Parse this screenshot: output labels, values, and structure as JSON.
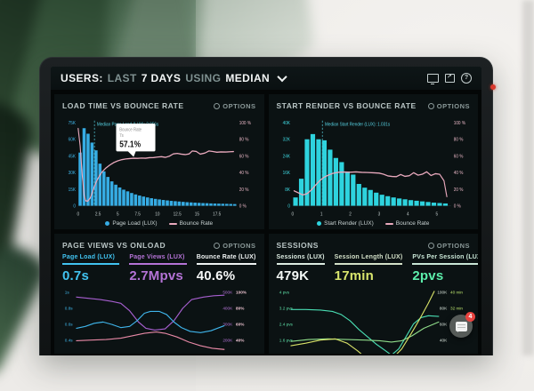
{
  "header": {
    "title_segments": [
      {
        "text": "USERS:",
        "style": "bold"
      },
      {
        "text": "LAST",
        "style": "dim"
      },
      {
        "text": "7 DAYS",
        "style": "bold"
      },
      {
        "text": "USING",
        "style": "dim"
      },
      {
        "text": "MEDIAN",
        "style": "bold"
      }
    ],
    "icons": [
      "display-icon",
      "export-icon",
      "help-icon"
    ]
  },
  "ui": {
    "options_label": "OPTIONS",
    "chat_badge": "4",
    "badge_color": "#e8433f"
  },
  "chart_data": [
    {
      "type": "bar",
      "title": "LOAD TIME VS BOUNCE RATE",
      "x_ticks": [
        0,
        2.5,
        5,
        7.5,
        10,
        12.5,
        15,
        17.5
      ],
      "x_max": 20,
      "y_left": {
        "max_k": 75,
        "ticks": [
          "75K",
          "60K",
          "45K",
          "30K",
          "15K",
          "0"
        ],
        "color": "#3fb6ea"
      },
      "y_right": {
        "max": 100,
        "ticks": [
          "100 %",
          "80 %",
          "60 %",
          "40 %",
          "20 %",
          "0 %"
        ],
        "color": "#e9b7c6"
      },
      "x_tick_color": "#c3cdcd",
      "bars": {
        "label": "Page Load (LUX)",
        "color": "#36ace4",
        "x0": 0,
        "step": 0.5,
        "values_k": [
          48,
          70,
          65,
          57,
          50,
          38,
          31,
          26,
          22,
          19,
          16.5,
          14.5,
          13,
          11.5,
          10.2,
          9.2,
          8.3,
          7.5,
          6.8,
          6.2,
          5.7,
          5.2,
          4.8,
          4.4,
          4.1,
          3.8,
          3.5,
          3.2,
          3,
          2.8,
          2.6,
          2.4,
          2.3,
          2.1,
          2,
          1.9,
          1.8,
          1.7,
          1.6,
          1.5
        ]
      },
      "line": {
        "label": "Bounce Rate",
        "color": "#e9a9bd",
        "points": [
          [
            0,
            93
          ],
          [
            0.25,
            72
          ],
          [
            0.5,
            38
          ],
          [
            0.75,
            13
          ],
          [
            0.95,
            6
          ],
          [
            1.2,
            5.5
          ],
          [
            1.5,
            9
          ],
          [
            1.75,
            15
          ],
          [
            2,
            22
          ],
          [
            2.25,
            28
          ],
          [
            2.5,
            33
          ],
          [
            2.75,
            37
          ],
          [
            3,
            40.5
          ],
          [
            3.5,
            45.5
          ],
          [
            4,
            49
          ],
          [
            4.5,
            52
          ],
          [
            5,
            54
          ],
          [
            5.5,
            55.5
          ],
          [
            6,
            56.3
          ],
          [
            6.5,
            56.8
          ],
          [
            7,
            57.1
          ],
          [
            7.5,
            57
          ],
          [
            8,
            57.4
          ],
          [
            8.5,
            57.1
          ],
          [
            9,
            57.8
          ],
          [
            9.5,
            58
          ],
          [
            10,
            58.6
          ],
          [
            10.5,
            59
          ],
          [
            11,
            58.2
          ],
          [
            11.5,
            59.6
          ],
          [
            12,
            62.4
          ],
          [
            12.5,
            63
          ],
          [
            13,
            62.2
          ],
          [
            13.5,
            61.6
          ],
          [
            14,
            62.4
          ],
          [
            14.4,
            66
          ],
          [
            14.9,
            65.4
          ],
          [
            15.4,
            62.2
          ],
          [
            16,
            63.4
          ],
          [
            16.5,
            66
          ],
          [
            17,
            65.2
          ],
          [
            17.5,
            64.4
          ],
          [
            18,
            64.8
          ],
          [
            18.6,
            64.6
          ],
          [
            19.2,
            65
          ],
          [
            19.6,
            65.2
          ]
        ]
      },
      "median": {
        "x": 2.056,
        "label": "Median Page Load (LUX): 2.056s",
        "color": "#58d5e6"
      },
      "tooltip": {
        "label": "Bounce Rate",
        "sub": "7s",
        "value": "57.1%",
        "at_x": 7,
        "at_y": 57.1
      }
    },
    {
      "type": "bar",
      "title": "START RENDER VS BOUNCE RATE",
      "x_ticks": [
        0,
        1,
        2,
        3,
        4,
        5
      ],
      "x_max": 5.5,
      "y_left": {
        "max_k": 40,
        "ticks": [
          "40K",
          "32K",
          "24K",
          "16K",
          "8K",
          "0"
        ],
        "color": "#3fd9e2"
      },
      "y_right": {
        "max": 100,
        "ticks": [
          "100 %",
          "80 %",
          "60 %",
          "40 %",
          "20 %",
          "0 %"
        ],
        "color": "#e9b7c6"
      },
      "x_tick_color": "#c3cdcd",
      "bars": {
        "label": "Start Render (LUX)",
        "color": "#2ed3de",
        "x0": 0,
        "step": 0.2,
        "values_k": [
          4,
          13,
          32,
          34.5,
          32,
          31.5,
          27,
          23,
          21,
          16.5,
          15,
          10.5,
          8.7,
          7.6,
          6.3,
          5.3,
          4.6,
          4,
          3.5,
          3.1,
          2.7,
          2.4,
          2.1,
          1.8,
          1.5,
          1.3,
          1.1
        ]
      },
      "line": {
        "label": "Bounce Rate",
        "color": "#e9a9bd",
        "points": [
          [
            0.05,
            18
          ],
          [
            0.2,
            15.5
          ],
          [
            0.35,
            13
          ],
          [
            0.5,
            14.5
          ],
          [
            0.65,
            19
          ],
          [
            0.8,
            25
          ],
          [
            0.95,
            30.5
          ],
          [
            1.1,
            34.5
          ],
          [
            1.25,
            37
          ],
          [
            1.4,
            39
          ],
          [
            1.6,
            40.3
          ],
          [
            1.8,
            40.6
          ],
          [
            2,
            40.4
          ],
          [
            2.2,
            40.7
          ],
          [
            2.4,
            40.2
          ],
          [
            2.6,
            40
          ],
          [
            2.8,
            39.6
          ],
          [
            3,
            39.3
          ],
          [
            3.15,
            38
          ],
          [
            3.3,
            36
          ],
          [
            3.45,
            35.2
          ],
          [
            3.6,
            35
          ],
          [
            3.75,
            37.6
          ],
          [
            3.9,
            35.4
          ],
          [
            4.05,
            36.2
          ],
          [
            4.2,
            39.8
          ],
          [
            4.35,
            36.8
          ],
          [
            4.5,
            38
          ],
          [
            4.65,
            40.8
          ],
          [
            4.8,
            36.4
          ],
          [
            4.95,
            38.6
          ],
          [
            5.1,
            37.8
          ],
          [
            5.25,
            30
          ],
          [
            5.35,
            11
          ]
        ]
      },
      "median": {
        "x": 1.031,
        "label": "Median Start Render (LUX): 1.031s",
        "color": "#58d5e6"
      }
    },
    {
      "type": "line",
      "title": "PAGE VIEWS VS ONLOAD",
      "metrics": [
        {
          "label": "Page Load (LUX)",
          "value": "0.7s",
          "color": "#41c3f0",
          "value_color": "#41c3f0"
        },
        {
          "label": "Page Views (LUX)",
          "value": "2.7Mpvs",
          "color": "#b473d6",
          "value_color": "#b473d6"
        },
        {
          "label": "Bounce Rate (LUX)",
          "value": "40.6%",
          "color": "#eef2f2",
          "value_color": "#f7f9f9"
        }
      ],
      "y_left": {
        "ticks": [
          "1s",
          "0.8s",
          "0.6s",
          "0.4s"
        ],
        "color": "#3fb6ea"
      },
      "y_right1": {
        "ticks": [
          "500K",
          "400K",
          "300K",
          "200K"
        ],
        "color": "#b273d4"
      },
      "y_right2": {
        "ticks": [
          "100%",
          "80%",
          "60%",
          "40%"
        ],
        "color": "#eec4d2",
        "bold": true
      },
      "series": [
        {
          "name": "Page Views",
          "color": "#a75fd0",
          "points": [
            [
              0,
              0.88
            ],
            [
              0.08,
              0.86
            ],
            [
              0.16,
              0.84
            ],
            [
              0.24,
              0.81
            ],
            [
              0.3,
              0.78
            ],
            [
              0.36,
              0.66
            ],
            [
              0.42,
              0.48
            ],
            [
              0.47,
              0.38
            ],
            [
              0.53,
              0.35
            ],
            [
              0.6,
              0.37
            ],
            [
              0.66,
              0.5
            ],
            [
              0.72,
              0.7
            ],
            [
              0.78,
              0.84
            ],
            [
              0.86,
              0.88
            ],
            [
              0.93,
              0.9
            ],
            [
              1,
              0.91
            ]
          ]
        },
        {
          "name": "Page Load",
          "color": "#3fb4ea",
          "points": [
            [
              0,
              0.38
            ],
            [
              0.06,
              0.41
            ],
            [
              0.12,
              0.46
            ],
            [
              0.18,
              0.48
            ],
            [
              0.24,
              0.44
            ],
            [
              0.3,
              0.39
            ],
            [
              0.36,
              0.41
            ],
            [
              0.41,
              0.5
            ],
            [
              0.46,
              0.62
            ],
            [
              0.5,
              0.65
            ],
            [
              0.56,
              0.65
            ],
            [
              0.61,
              0.6
            ],
            [
              0.66,
              0.48
            ],
            [
              0.71,
              0.39
            ],
            [
              0.77,
              0.33
            ],
            [
              0.84,
              0.31
            ],
            [
              0.91,
              0.34
            ],
            [
              1,
              0.42
            ]
          ]
        },
        {
          "name": "Bounce Rate",
          "color": "#e889a6",
          "points": [
            [
              0,
              0.18
            ],
            [
              0.1,
              0.19
            ],
            [
              0.2,
              0.2
            ],
            [
              0.3,
              0.22
            ],
            [
              0.38,
              0.26
            ],
            [
              0.46,
              0.3
            ],
            [
              0.54,
              0.32
            ],
            [
              0.6,
              0.3
            ],
            [
              0.68,
              0.24
            ],
            [
              0.76,
              0.16
            ],
            [
              0.84,
              0.1
            ],
            [
              0.92,
              0.06
            ],
            [
              1,
              0.04
            ]
          ]
        }
      ]
    },
    {
      "type": "line",
      "title": "SESSIONS",
      "metrics": [
        {
          "label": "Sessions (LUX)",
          "value": "479K",
          "color": "#dcebe1",
          "value_color": "#f4f9f6"
        },
        {
          "label": "Session Length (LUX)",
          "value": "17min",
          "color": "#d3e0c8",
          "value_color": "#d9e56d"
        },
        {
          "label": "PVs Per Session (LUX)",
          "value": "2pvs",
          "color": "#c9e6d6",
          "value_color": "#5ceeab"
        }
      ],
      "y_left": {
        "ticks": [
          "4 pvs",
          "3.2 pvs",
          "2.4 pvs",
          "1.6 pvs"
        ],
        "color": "#5fe0a8"
      },
      "y_right1": {
        "ticks": [
          "100K",
          "80K",
          "60K",
          "40K"
        ],
        "color": "#d7e3da"
      },
      "y_right2": {
        "ticks": [
          "40 min",
          "32 min",
          "24 min",
          ""
        ],
        "color": "#b9e06d",
        "bold": false
      },
      "series": [
        {
          "name": "Sessions",
          "color": "#49dcb2",
          "points": [
            [
              0,
              0.68
            ],
            [
              0.1,
              0.68
            ],
            [
              0.2,
              0.67
            ],
            [
              0.28,
              0.65
            ],
            [
              0.34,
              0.6
            ],
            [
              0.4,
              0.5
            ],
            [
              0.46,
              0.36
            ],
            [
              0.52,
              0.24
            ],
            [
              0.58,
              0.12
            ],
            [
              0.64,
              0.02
            ],
            [
              0.68,
              -0.05
            ],
            [
              0.73,
              0.05
            ],
            [
              0.78,
              0.25
            ],
            [
              0.83,
              0.45
            ],
            [
              0.88,
              0.55
            ],
            [
              0.93,
              0.58
            ],
            [
              1,
              0.57
            ]
          ]
        },
        {
          "name": "PVs Per Session",
          "color": "#8fdc8a",
          "points": [
            [
              0,
              0.17
            ],
            [
              0.12,
              0.2
            ],
            [
              0.25,
              0.21
            ],
            [
              0.38,
              0.2
            ],
            [
              0.5,
              0.19
            ],
            [
              0.6,
              0.18
            ],
            [
              0.68,
              0.16
            ],
            [
              0.75,
              0.18
            ],
            [
              0.82,
              0.26
            ],
            [
              0.9,
              0.38
            ],
            [
              1,
              0.48
            ]
          ]
        },
        {
          "name": "Session Length",
          "color": "#d7e167",
          "points": [
            [
              0,
              0.1
            ],
            [
              0.1,
              0.14
            ],
            [
              0.2,
              0.19
            ],
            [
              0.3,
              0.21
            ],
            [
              0.38,
              0.14
            ],
            [
              0.45,
              0.02
            ],
            [
              0.52,
              -0.12
            ],
            [
              0.6,
              -0.22
            ],
            [
              0.68,
              -0.12
            ],
            [
              0.75,
              0.05
            ],
            [
              0.81,
              0.28
            ],
            [
              0.87,
              0.52
            ],
            [
              0.93,
              0.78
            ],
            [
              0.97,
              0.97
            ]
          ]
        }
      ]
    }
  ]
}
